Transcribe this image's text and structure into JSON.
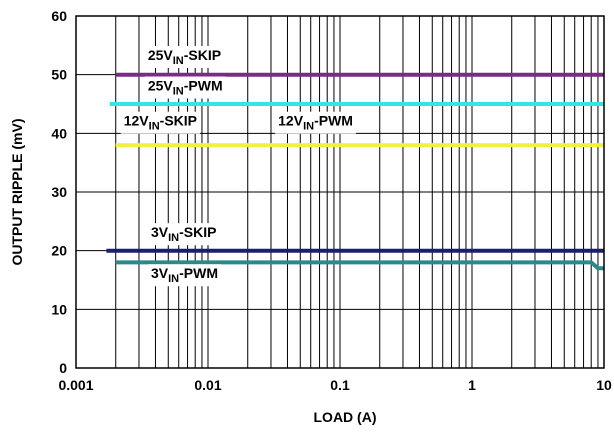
{
  "chart_data": {
    "type": "line",
    "x_scale": "log",
    "xlabel": "LOAD (A)",
    "ylabel": "OUTPUT RIPPLE (mV)",
    "xlim": [
      0.001,
      10
    ],
    "ylim": [
      0,
      60
    ],
    "x_ticks": [
      {
        "value": 0.001,
        "label": "0.001"
      },
      {
        "value": 0.01,
        "label": "0.01"
      },
      {
        "value": 0.1,
        "label": "0.1"
      },
      {
        "value": 1,
        "label": "1"
      },
      {
        "value": 10,
        "label": "10"
      }
    ],
    "y_ticks": [
      {
        "value": 0,
        "label": "0"
      },
      {
        "value": 10,
        "label": "10"
      },
      {
        "value": 20,
        "label": "20"
      },
      {
        "value": 30,
        "label": "30"
      },
      {
        "value": 40,
        "label": "40"
      },
      {
        "value": 50,
        "label": "50"
      },
      {
        "value": 60,
        "label": "60"
      }
    ],
    "grid": true,
    "series": [
      {
        "name": "25VIN-SKIP",
        "label_prefix": "25V",
        "label_sub": "IN",
        "label_suffix": "-SKIP",
        "color": "#7b2a86",
        "points": [
          [
            0.002,
            50
          ],
          [
            10,
            50
          ]
        ],
        "label_at": [
          0.0035,
          52.5
        ]
      },
      {
        "name": "25VIN-PWM",
        "label_prefix": "25V",
        "label_sub": "IN",
        "label_suffix": "-PWM",
        "color": "#33e6e6",
        "points": [
          [
            0.0018,
            45
          ],
          [
            10,
            45
          ]
        ],
        "label_at": [
          0.0035,
          47.3
        ]
      },
      {
        "name": "12VIN-SKIP",
        "label_prefix": "12V",
        "label_sub": "IN",
        "label_suffix": "-SKIP",
        "color": "#f2f23a",
        "points": [
          [
            0.002,
            38
          ],
          [
            10,
            38
          ]
        ],
        "label_at": [
          0.0023,
          41.3
        ]
      },
      {
        "name": "12VIN-PWM",
        "label_prefix": "12V",
        "label_sub": "IN",
        "label_suffix": "-PWM",
        "color": "#f2f23a",
        "points": [],
        "label_at": [
          0.034,
          41.3
        ]
      },
      {
        "name": "3VIN-SKIP",
        "label_prefix": "3V",
        "label_sub": "IN",
        "label_suffix": "-SKIP",
        "color": "#1a1f6e",
        "points": [
          [
            0.0017,
            20
          ],
          [
            10,
            20
          ]
        ],
        "label_at": [
          0.0037,
          22.3
        ]
      },
      {
        "name": "3VIN-PWM",
        "label_prefix": "3V",
        "label_sub": "IN",
        "label_suffix": "-PWM",
        "color": "#2a8a8a",
        "points": [
          [
            0.002,
            18
          ],
          [
            8,
            18
          ],
          [
            9,
            17
          ],
          [
            10,
            17
          ]
        ],
        "label_at": [
          0.0037,
          15.3
        ]
      }
    ]
  }
}
